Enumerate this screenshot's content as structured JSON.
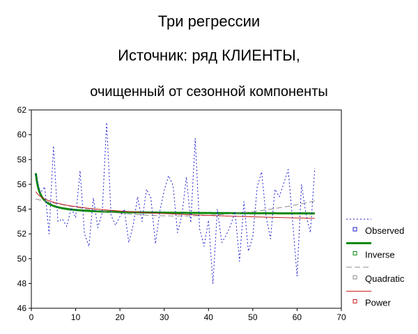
{
  "chart_data": {
    "type": "line",
    "title": [
      "Три регрессии",
      "Источник: ряд КЛИЕНТЫ,",
      "очищенный от сезонной компоненты"
    ],
    "xlim": [
      0,
      70
    ],
    "ylim": [
      46,
      62
    ],
    "xticks": [
      0,
      10,
      20,
      30,
      40,
      50,
      60,
      70
    ],
    "yticks": [
      46,
      48,
      50,
      52,
      54,
      56,
      58,
      60,
      62
    ],
    "grid": false,
    "legend_position": "right",
    "series": [
      {
        "name": "Observed",
        "style": "dotted",
        "color": "#1a1acc",
        "x": [
          1,
          2,
          3,
          4,
          5,
          6,
          7,
          8,
          9,
          10,
          11,
          12,
          13,
          14,
          15,
          16,
          17,
          18,
          19,
          20,
          21,
          22,
          23,
          24,
          25,
          26,
          27,
          28,
          29,
          30,
          31,
          32,
          33,
          34,
          35,
          36,
          37,
          38,
          39,
          40,
          41,
          42,
          43,
          44,
          45,
          46,
          47,
          48,
          49,
          50,
          51,
          52,
          53,
          54,
          55,
          56,
          57,
          58,
          59,
          60,
          61,
          62,
          63,
          64
        ],
        "y": [
          56.8,
          55.3,
          55.8,
          52.0,
          59.1,
          53.0,
          53.2,
          52.6,
          54.1,
          53.3,
          57.1,
          52.0,
          51.0,
          54.9,
          52.5,
          53.7,
          61.0,
          53.5,
          52.7,
          53.4,
          54.0,
          51.3,
          52.7,
          55.0,
          53.0,
          55.6,
          54.9,
          51.2,
          53.8,
          55.5,
          56.7,
          55.9,
          52.1,
          53.5,
          56.6,
          52.9,
          59.7,
          52.4,
          51.0,
          53.1,
          48.0,
          54.0,
          51.3,
          51.9,
          52.7,
          53.8,
          49.8,
          54.6,
          50.6,
          51.8,
          55.8,
          57.0,
          53.4,
          51.6,
          55.6,
          55.0,
          56.1,
          57.2,
          53.0,
          48.6,
          56.0,
          53.6,
          52.1,
          57.3
        ]
      },
      {
        "name": "Inverse",
        "style": "solid-thick",
        "color": "#0a8a0a",
        "model": "inverse",
        "b0": 53.6,
        "b1": 3.3
      },
      {
        "name": "Quadratic",
        "style": "dashed",
        "color": "#8c8c8c",
        "model": "quadratic",
        "b0": 54.9,
        "b1": -0.087,
        "b2": 0.0013
      },
      {
        "name": "Power",
        "style": "solid-thin",
        "color": "#c81e1e",
        "model": "power",
        "b0": 55.4,
        "b1": -0.0095
      }
    ]
  }
}
